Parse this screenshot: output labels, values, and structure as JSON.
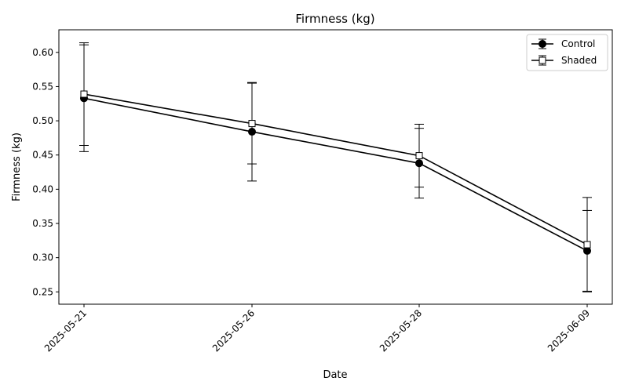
{
  "chart_data": {
    "type": "line",
    "title": "Firmness (kg)",
    "xlabel": "Date",
    "ylabel": "Firmness (kg)",
    "categories": [
      "2025-05-21",
      "2025-05-26",
      "2025-05-28",
      "2025-06-09"
    ],
    "ylim": [
      0.232,
      0.633
    ],
    "yticks": [
      "0.25",
      "0.30",
      "0.35",
      "0.40",
      "0.45",
      "0.50",
      "0.55",
      "0.60"
    ],
    "grid": false,
    "legend_position": "top-right",
    "series": [
      {
        "name": "Control",
        "marker": "circle",
        "marker_fill": "#000000",
        "color": "#000000",
        "values": [
          0.533,
          0.484,
          0.438,
          0.31
        ],
        "errors": [
          0.078,
          0.072,
          0.051,
          0.059
        ]
      },
      {
        "name": "Shaded",
        "marker": "square",
        "marker_fill": "#ffffff",
        "color": "#000000",
        "values": [
          0.539,
          0.496,
          0.449,
          0.319
        ],
        "errors": [
          0.075,
          0.059,
          0.046,
          0.069
        ]
      }
    ]
  }
}
